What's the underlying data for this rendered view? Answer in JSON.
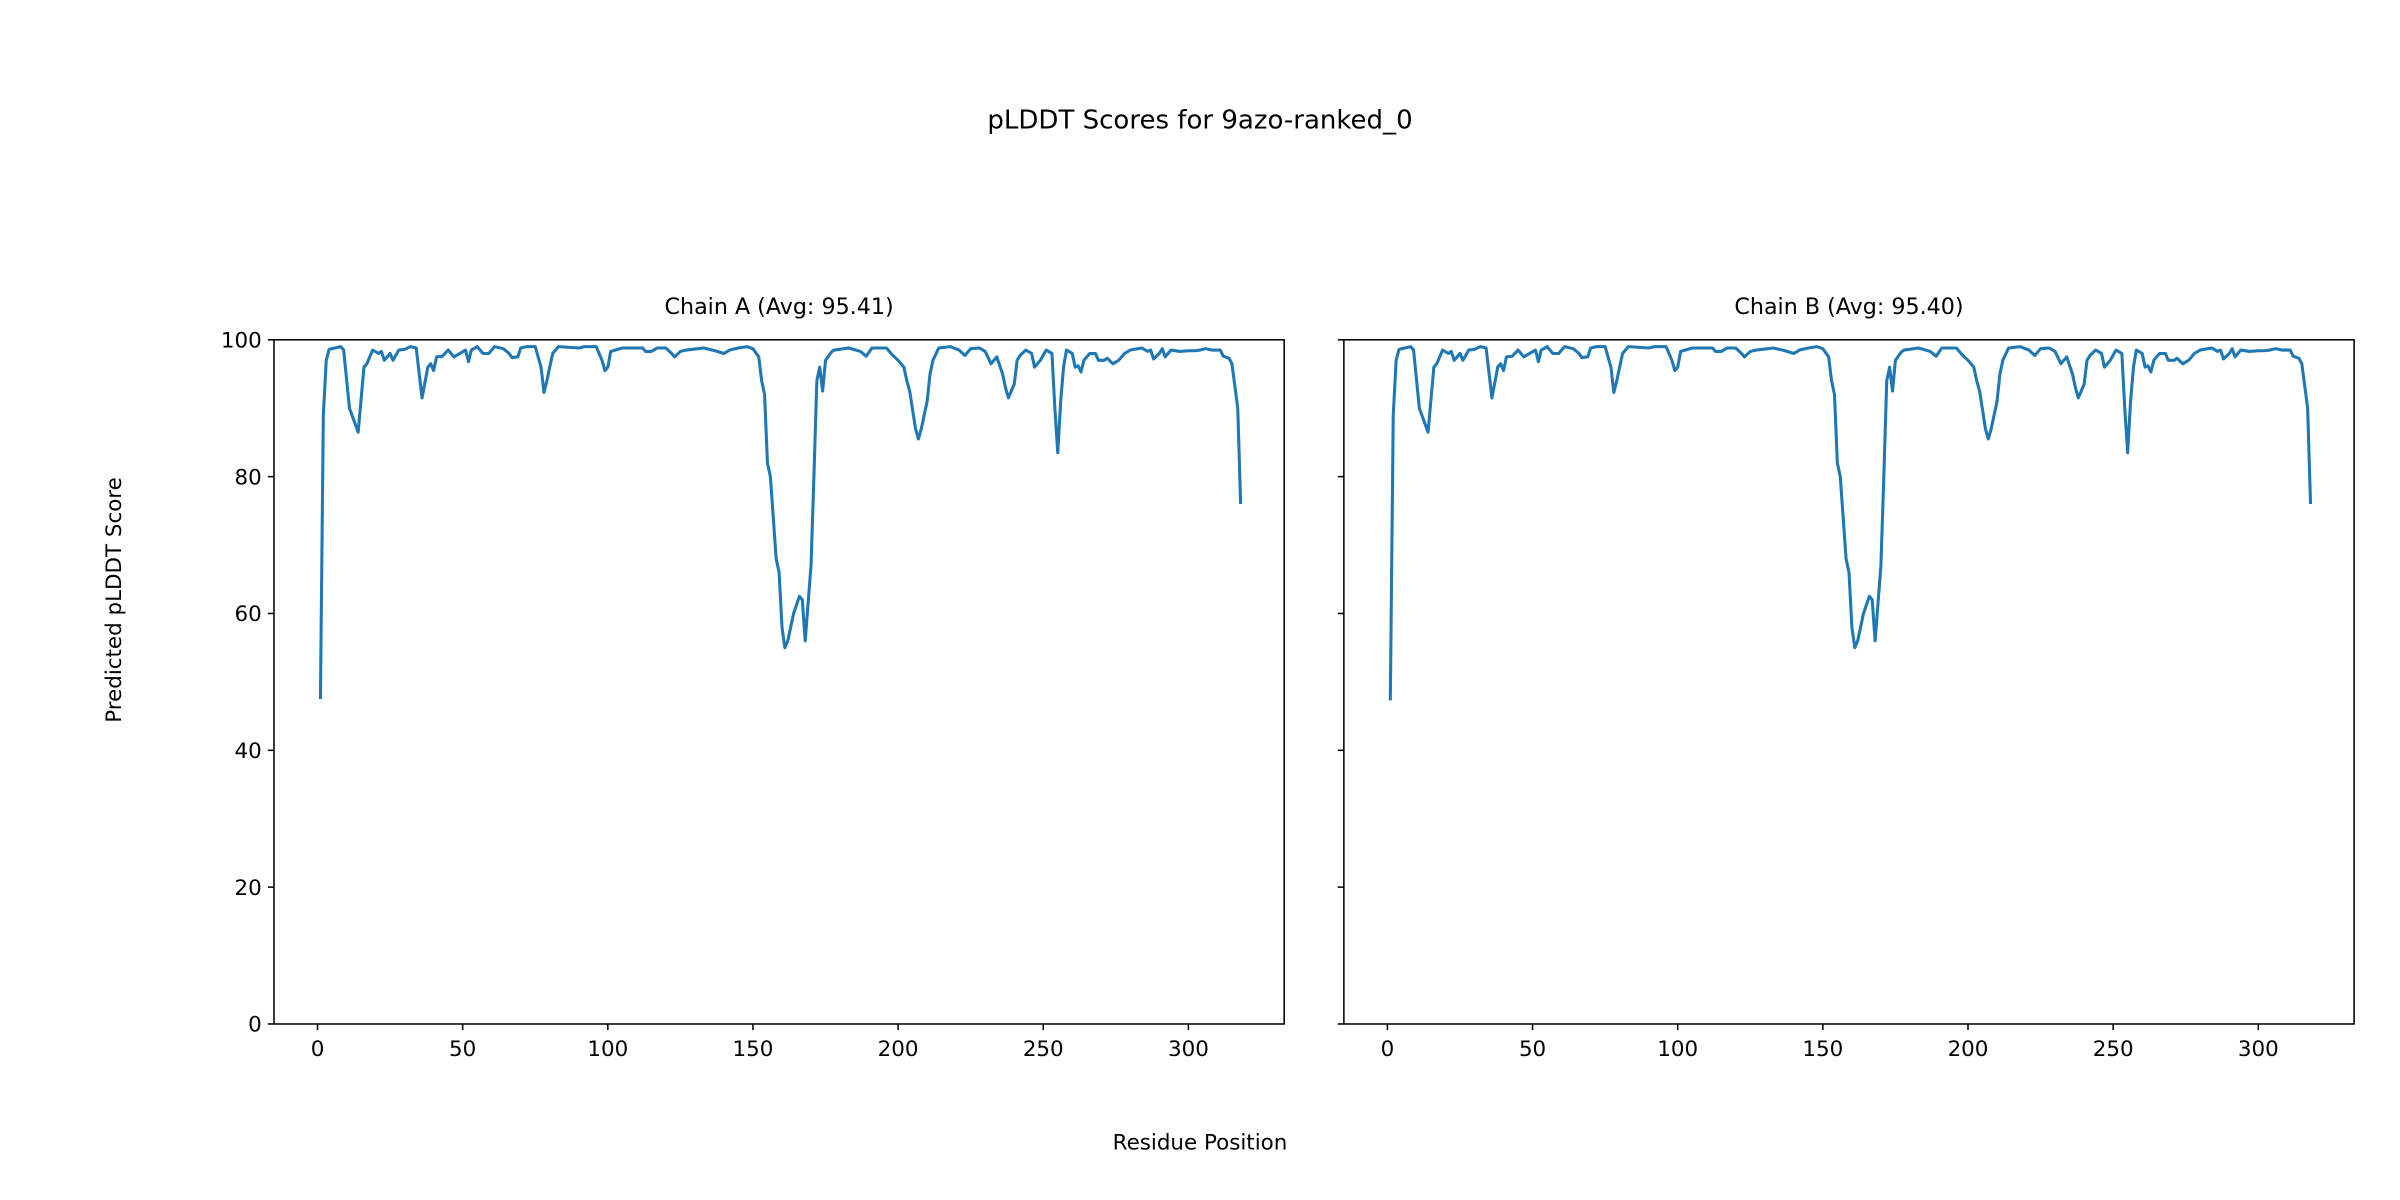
{
  "figure_title": "pLDDT Scores for 9azo-ranked_0",
  "xlabel": "Residue Position",
  "ylabel": "Predicted pLDDT Score",
  "line_color": "#1f77b4",
  "chart_data": [
    {
      "type": "line",
      "title": "Chain A (Avg: 95.41)",
      "xlabel": "Residue Position",
      "ylabel": "Predicted pLDDT Score",
      "xlim": [
        -15,
        333
      ],
      "ylim": [
        0,
        100
      ],
      "xticks": [
        0,
        50,
        100,
        150,
        200,
        250,
        300
      ],
      "yticks": [
        0,
        20,
        40,
        60,
        80,
        100
      ],
      "show_ytick_labels": true,
      "grid": false,
      "x": [
        1,
        2,
        3,
        4,
        8,
        9,
        11,
        14,
        16,
        17,
        19,
        21,
        22,
        23,
        25,
        26,
        28,
        30,
        32,
        34,
        36,
        38,
        39,
        40,
        41,
        43,
        45,
        47,
        49,
        51,
        52,
        53,
        55,
        57,
        59,
        61,
        64,
        66,
        67,
        69,
        70,
        72,
        75,
        77,
        78,
        79,
        81,
        83,
        90,
        92,
        96,
        98,
        99,
        100,
        101,
        105,
        112,
        113,
        115,
        117,
        120,
        122,
        123,
        125,
        127,
        133,
        137,
        140,
        142,
        145,
        148,
        150,
        152,
        153,
        154,
        155,
        156,
        157,
        158,
        159,
        160,
        161,
        162,
        164,
        166,
        167,
        168,
        170,
        171,
        172,
        173,
        174,
        175,
        177,
        178,
        183,
        187,
        189,
        191,
        196,
        198,
        200,
        202,
        203,
        204,
        206,
        207,
        208,
        210,
        211,
        212,
        214,
        218,
        221,
        223,
        225,
        228,
        230,
        232,
        234,
        236,
        237,
        238,
        240,
        241,
        242,
        244,
        246,
        247,
        249,
        251,
        253,
        254,
        255,
        256,
        257,
        258,
        260,
        261,
        262,
        263,
        264,
        266,
        268,
        269,
        271,
        272,
        274,
        276,
        278,
        280,
        284,
        286,
        287,
        288,
        290,
        291,
        292,
        294,
        297,
        300,
        302,
        304,
        306,
        308,
        311,
        312,
        314,
        315,
        317,
        318
      ],
      "y": [
        47.5,
        89,
        97,
        98.6,
        99,
        98.5,
        90,
        86.5,
        96,
        96.5,
        98.5,
        98,
        98.3,
        97,
        98,
        97,
        98.5,
        98.6,
        99,
        98.8,
        91.5,
        96,
        96.5,
        95.5,
        97.5,
        97.6,
        98.5,
        97.5,
        98,
        98.5,
        96.8,
        98.5,
        99,
        98,
        98,
        99,
        98.7,
        98,
        97.4,
        97.5,
        98.8,
        99,
        99,
        96,
        92.3,
        94,
        98,
        99,
        98.8,
        99,
        99,
        97,
        95.5,
        96,
        98.3,
        98.8,
        98.8,
        98.3,
        98.3,
        98.8,
        98.8,
        98,
        97.5,
        98.3,
        98.5,
        98.8,
        98.4,
        98,
        98.5,
        98.8,
        99,
        98.7,
        97.5,
        94,
        92,
        82,
        80,
        74,
        68,
        66,
        58,
        55,
        56,
        60,
        62.5,
        62,
        56,
        67,
        80,
        94,
        96,
        92.5,
        97,
        98.2,
        98.5,
        98.8,
        98.3,
        97.6,
        98.8,
        98.8,
        97.8,
        97,
        96,
        94,
        92.5,
        87,
        85.5,
        87,
        91,
        95,
        97,
        98.8,
        99,
        98.5,
        97.7,
        98.7,
        98.8,
        98.3,
        96.5,
        97.5,
        95,
        93,
        91.5,
        93.5,
        97,
        97.7,
        98.5,
        98,
        96,
        97,
        98.5,
        98,
        90,
        83.5,
        91,
        96,
        98.5,
        98,
        96,
        96.2,
        95.3,
        97,
        98,
        98,
        97,
        97,
        97.3,
        96.5,
        97,
        98,
        98.5,
        98.8,
        98.3,
        98.5,
        97.2,
        98,
        98.7,
        97.5,
        98.5,
        98.3,
        98.4,
        98.4,
        98.5,
        98.7,
        98.5,
        98.5,
        97.6,
        97.3,
        96.5,
        90,
        76
      ]
    },
    {
      "type": "line",
      "title": "Chain B (Avg: 95.40)",
      "xlabel": "Residue Position",
      "ylabel": "Predicted pLDDT Score",
      "xlim": [
        -15,
        333
      ],
      "ylim": [
        0,
        100
      ],
      "xticks": [
        0,
        50,
        100,
        150,
        200,
        250,
        300
      ],
      "yticks": [
        0,
        20,
        40,
        60,
        80,
        100
      ],
      "show_ytick_labels": false,
      "grid": false,
      "x": [
        1,
        2,
        3,
        4,
        8,
        9,
        11,
        14,
        16,
        17,
        19,
        21,
        22,
        23,
        25,
        26,
        28,
        30,
        32,
        34,
        36,
        38,
        39,
        40,
        41,
        43,
        45,
        47,
        49,
        51,
        52,
        53,
        55,
        57,
        59,
        61,
        64,
        66,
        67,
        69,
        70,
        72,
        75,
        77,
        78,
        79,
        81,
        83,
        90,
        92,
        96,
        98,
        99,
        100,
        101,
        105,
        112,
        113,
        115,
        117,
        120,
        122,
        123,
        125,
        127,
        133,
        137,
        140,
        142,
        145,
        148,
        150,
        152,
        153,
        154,
        155,
        156,
        157,
        158,
        159,
        160,
        161,
        162,
        164,
        166,
        167,
        168,
        170,
        171,
        172,
        173,
        174,
        175,
        177,
        178,
        183,
        187,
        189,
        191,
        196,
        198,
        200,
        202,
        203,
        204,
        206,
        207,
        208,
        210,
        211,
        212,
        214,
        218,
        221,
        223,
        225,
        228,
        230,
        232,
        234,
        236,
        237,
        238,
        240,
        241,
        242,
        244,
        246,
        247,
        249,
        251,
        253,
        254,
        255,
        256,
        257,
        258,
        260,
        261,
        262,
        263,
        264,
        266,
        268,
        269,
        271,
        272,
        274,
        276,
        278,
        280,
        284,
        286,
        287,
        288,
        290,
        291,
        292,
        294,
        297,
        300,
        302,
        304,
        306,
        308,
        311,
        312,
        314,
        315,
        317,
        318
      ],
      "y": [
        47.3,
        89,
        97,
        98.6,
        99,
        98.5,
        90,
        86.5,
        96,
        96.5,
        98.5,
        98,
        98.3,
        97,
        98,
        97,
        98.5,
        98.6,
        99,
        98.8,
        91.5,
        96,
        96.5,
        95.5,
        97.5,
        97.6,
        98.5,
        97.5,
        98,
        98.5,
        96.8,
        98.5,
        99,
        98,
        98,
        99,
        98.7,
        98,
        97.4,
        97.5,
        98.8,
        99,
        99,
        96,
        92.3,
        94,
        98,
        99,
        98.8,
        99,
        99,
        97,
        95.5,
        96,
        98.3,
        98.8,
        98.8,
        98.3,
        98.3,
        98.8,
        98.8,
        98,
        97.5,
        98.3,
        98.5,
        98.8,
        98.4,
        98,
        98.5,
        98.8,
        99,
        98.7,
        97.5,
        94,
        92,
        82,
        80,
        74,
        68,
        66,
        58,
        55,
        56,
        60,
        62.5,
        62,
        56,
        67,
        80,
        94,
        96,
        92.5,
        97,
        98.2,
        98.5,
        98.8,
        98.3,
        97.6,
        98.8,
        98.8,
        97.8,
        97,
        96,
        94,
        92.5,
        87,
        85.5,
        87,
        91,
        95,
        97,
        98.8,
        99,
        98.5,
        97.7,
        98.7,
        98.8,
        98.3,
        96.5,
        97.5,
        95,
        93,
        91.5,
        93.5,
        97,
        97.7,
        98.5,
        98,
        96,
        97,
        98.5,
        98,
        90,
        83.5,
        91,
        96,
        98.5,
        98,
        96,
        96.2,
        95.3,
        97,
        98,
        98,
        97,
        97,
        97.3,
        96.5,
        97,
        98,
        98.5,
        98.8,
        98.3,
        98.5,
        97.2,
        98,
        98.7,
        97.5,
        98.5,
        98.3,
        98.4,
        98.4,
        98.5,
        98.7,
        98.5,
        98.5,
        97.6,
        97.3,
        96.5,
        90,
        76
      ]
    }
  ]
}
